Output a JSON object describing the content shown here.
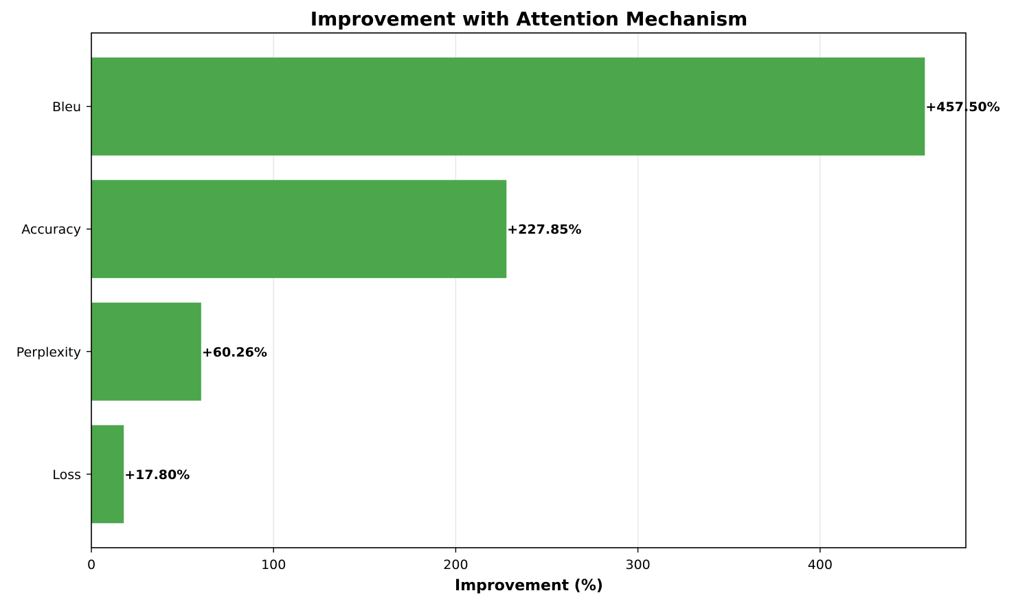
{
  "chart_data": {
    "type": "bar",
    "orientation": "horizontal",
    "title": "Improvement with Attention Mechanism",
    "xlabel": "Improvement (%)",
    "ylabel": "",
    "categories": [
      "Loss",
      "Perplexity",
      "Accuracy",
      "Bleu"
    ],
    "values": [
      17.8,
      60.26,
      227.85,
      457.5
    ],
    "data_labels": [
      "+17.80%",
      "+60.26%",
      "+227.85%",
      "+457.50%"
    ],
    "xlim": [
      0,
      480
    ],
    "x_ticks": [
      0,
      100,
      200,
      300,
      400
    ],
    "x_tick_labels": [
      "0",
      "100",
      "200",
      "300",
      "400"
    ],
    "grid": "x",
    "bar_color": "#4ca64c",
    "grid_color": "#e6e6e6",
    "legend": "none"
  }
}
